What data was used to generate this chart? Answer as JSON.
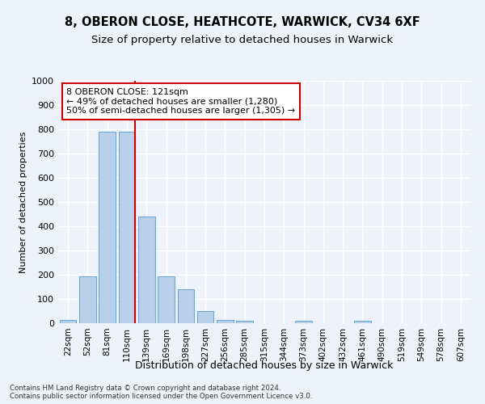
{
  "title": "8, OBERON CLOSE, HEATHCOTE, WARWICK, CV34 6XF",
  "subtitle": "Size of property relative to detached houses in Warwick",
  "xlabel": "Distribution of detached houses by size in Warwick",
  "ylabel": "Number of detached properties",
  "bin_labels": [
    "22sqm",
    "52sqm",
    "81sqm",
    "110sqm",
    "139sqm",
    "169sqm",
    "198sqm",
    "227sqm",
    "256sqm",
    "285sqm",
    "315sqm",
    "344sqm",
    "373sqm",
    "402sqm",
    "432sqm",
    "461sqm",
    "490sqm",
    "519sqm",
    "549sqm",
    "578sqm",
    "607sqm"
  ],
  "bar_heights": [
    15,
    195,
    790,
    790,
    440,
    195,
    140,
    50,
    15,
    10,
    0,
    0,
    10,
    0,
    0,
    10,
    0,
    0,
    0,
    0,
    0
  ],
  "bar_color": "#b8d0ea",
  "bar_edgecolor": "#6aaad4",
  "bar_linewidth": 0.8,
  "vline_pos": 3.42,
  "vline_color": "#cc0000",
  "vline_linewidth": 1.5,
  "ylim": [
    0,
    1000
  ],
  "yticks": [
    0,
    100,
    200,
    300,
    400,
    500,
    600,
    700,
    800,
    900,
    1000
  ],
  "annotation_text": "8 OBERON CLOSE: 121sqm\n← 49% of detached houses are smaller (1,280)\n50% of semi-detached houses are larger (1,305) →",
  "footer_text": "Contains HM Land Registry data © Crown copyright and database right 2024.\nContains public sector information licensed under the Open Government Licence v3.0.",
  "background_color": "#eef2fb",
  "grid_color": "#ffffff",
  "title_fontsize": 10.5,
  "subtitle_fontsize": 9.5,
  "xlabel_fontsize": 9,
  "ylabel_fontsize": 8,
  "annotation_fontsize": 8,
  "tick_fontsize": 7.5,
  "ytick_fontsize": 8
}
